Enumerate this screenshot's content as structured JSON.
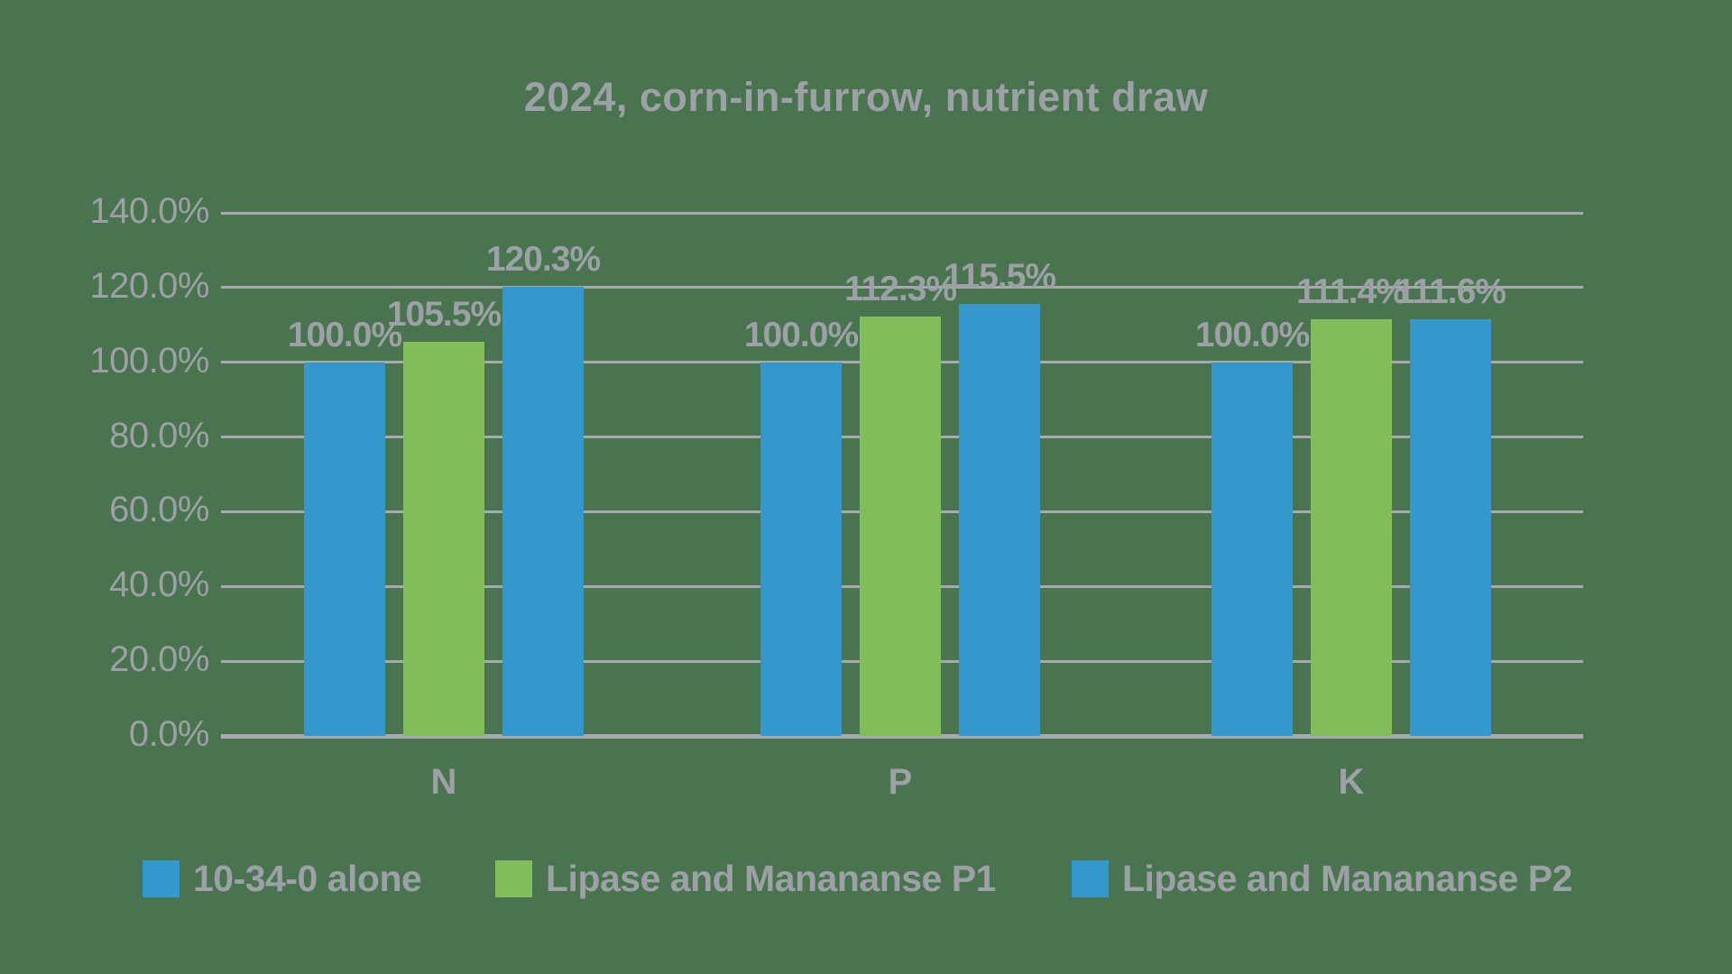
{
  "chart_data": {
    "type": "bar",
    "title": "2024, corn-in-furrow, nutrient draw",
    "categories": [
      "N",
      "P",
      "K"
    ],
    "series": [
      {
        "name": "10-34-0 alone",
        "color_key": "blue",
        "values": [
          100.0,
          100.0,
          100.0
        ],
        "labels": [
          "100.0%",
          "100.0%",
          "100.0%"
        ]
      },
      {
        "name": "Lipase and Manananse P1",
        "color_key": "green",
        "values": [
          105.5,
          112.3,
          111.4
        ],
        "labels": [
          "105.5%",
          "112.3%",
          "111.4%"
        ]
      },
      {
        "name": "Lipase and Manananse P2",
        "color_key": "blue",
        "values": [
          120.3,
          115.5,
          111.6
        ],
        "labels": [
          "120.3%",
          "115.5%",
          "111.6%"
        ]
      }
    ],
    "y_axis": {
      "min": 0,
      "max": 140,
      "step": 20,
      "ticks": [
        "0.0%",
        "20.0%",
        "40.0%",
        "60.0%",
        "80.0%",
        "100.0%",
        "120.0%",
        "140.0%"
      ]
    },
    "grid": true,
    "legend_position": "bottom"
  },
  "colors": {
    "background": "#4a734f",
    "blue": "#3598cd",
    "green": "#81bd59",
    "text": "#9ba1a4",
    "gridline": "#a6aaad"
  }
}
